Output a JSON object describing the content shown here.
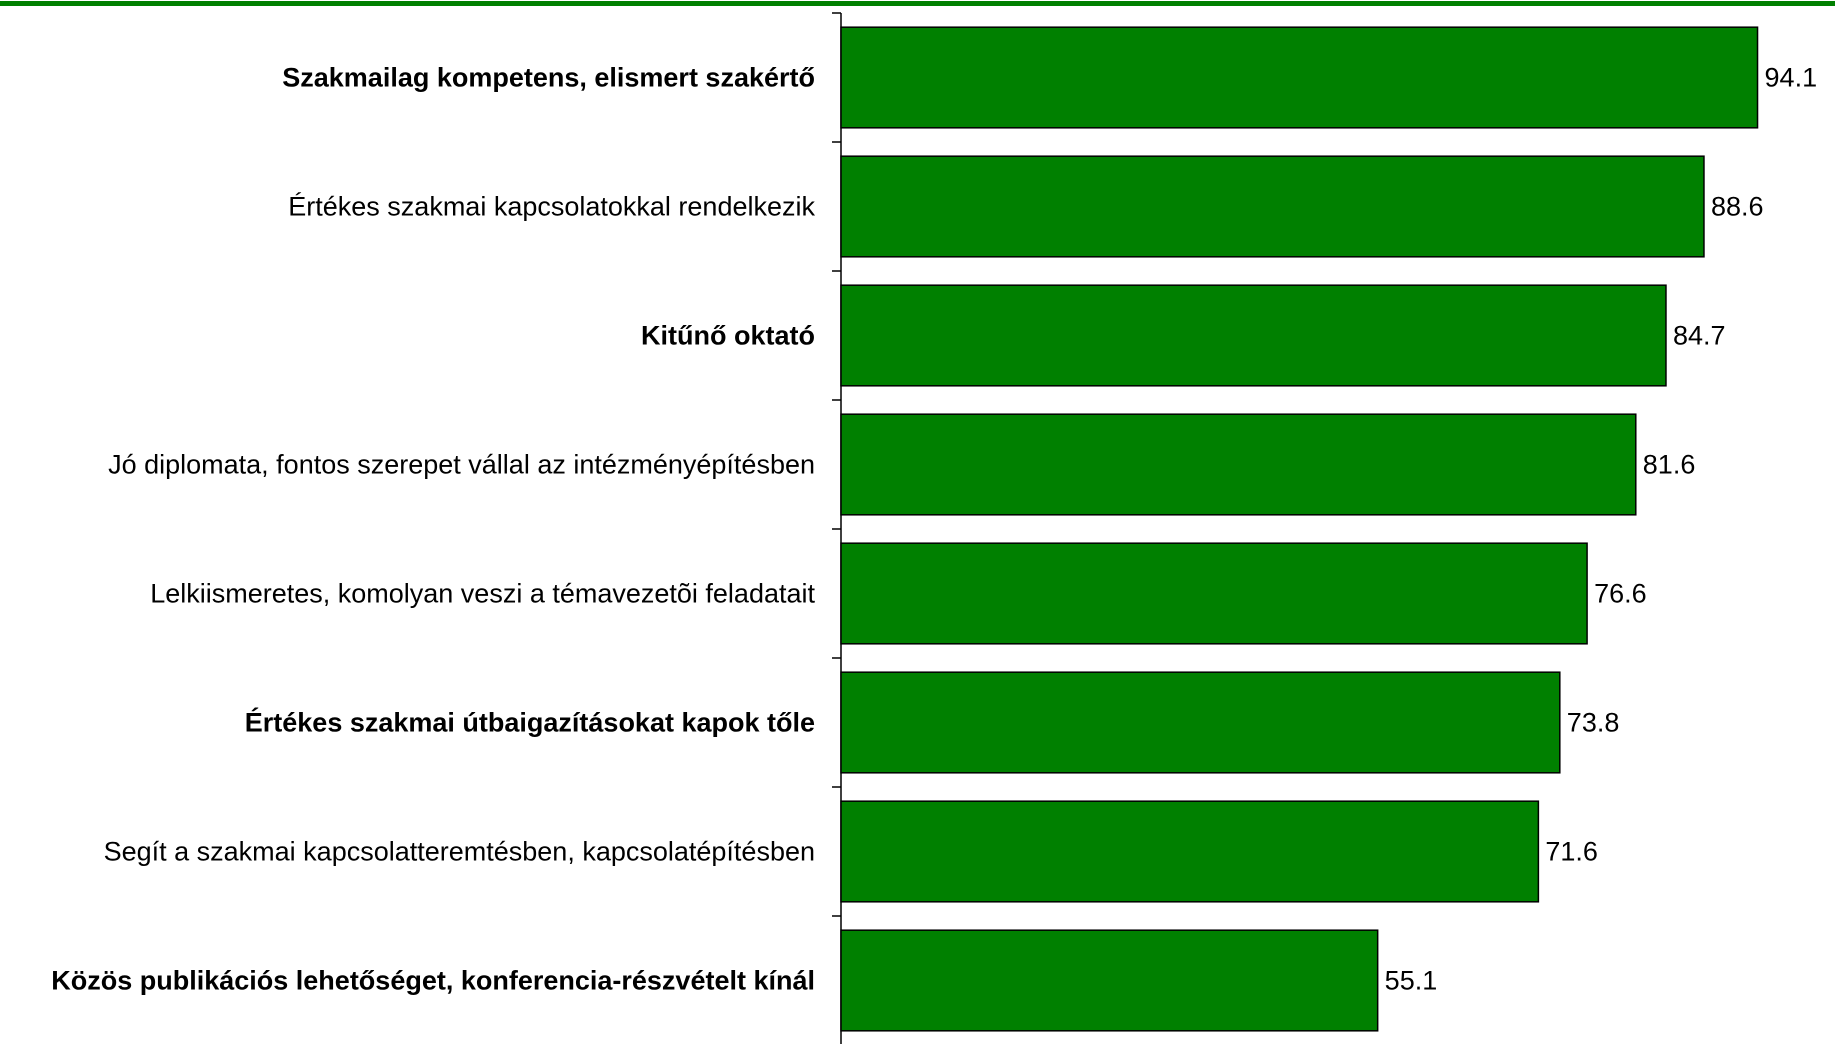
{
  "chart_data": {
    "type": "hbar",
    "categories": [
      "Szakmailag kompetens, elismert szakértő",
      "Értékes szakmai kapcsolatokkal rendelkezik",
      "Kitűnő oktató",
      "Jó diplomata, fontos szerepet vállal az intézményépítésben",
      "Lelkiismeretes, komolyan veszi a témavezetõi feladatait",
      "Értékes szakmai útbaigazításokat kapok tőle",
      "Segít a szakmai kapcsolatteremtésben, kapcsolatépítésben",
      "Közös publikációs lehetőséget, konferencia-részvételt kínál"
    ],
    "values": [
      94.1,
      88.6,
      84.7,
      81.6,
      76.6,
      73.8,
      71.6,
      55.1
    ],
    "label_bold": [
      true,
      false,
      true,
      false,
      false,
      true,
      false,
      true
    ],
    "color": "#008000",
    "xlim": [
      0,
      100
    ]
  }
}
